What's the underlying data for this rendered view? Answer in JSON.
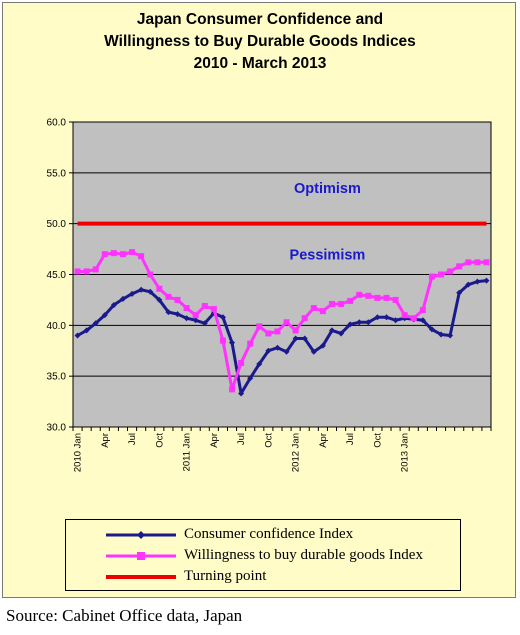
{
  "chart_data": {
    "type": "line",
    "title": [
      "Japan Consumer Confidence and",
      "Willingness to Buy Durable Goods Indices",
      "2010 -  March 2013"
    ],
    "ylim": [
      30,
      60
    ],
    "yticks": [
      "30.0",
      "35.0",
      "40.0",
      "45.0",
      "50.0",
      "55.0",
      "60.0"
    ],
    "ytick_values": [
      30,
      35,
      40,
      45,
      50,
      55,
      60
    ],
    "xtick_labels": [
      {
        "index": 0,
        "label": "2010 Jan"
      },
      {
        "index": 3,
        "label": "Apr"
      },
      {
        "index": 6,
        "label": "Jul"
      },
      {
        "index": 9,
        "label": "Oct"
      },
      {
        "index": 12,
        "label": "2011 Jan"
      },
      {
        "index": 15,
        "label": "Apr"
      },
      {
        "index": 18,
        "label": "Jul"
      },
      {
        "index": 21,
        "label": "Oct"
      },
      {
        "index": 24,
        "label": "2012 Jan"
      },
      {
        "index": 27,
        "label": "Apr"
      },
      {
        "index": 30,
        "label": "Jul"
      },
      {
        "index": 33,
        "label": "Oct"
      },
      {
        "index": 36,
        "label": "2013 Jan"
      }
    ],
    "grid": "horizontal",
    "background": "#c0c0c0",
    "legend_position": "bottom",
    "annotations": [
      {
        "text": "Optimism",
        "x": 27.5,
        "y": 53
      },
      {
        "text": "Pessimism",
        "x": 27.5,
        "y": 46.5
      }
    ],
    "series": [
      {
        "name": "Consumer confidence Index",
        "color": "#1a1a8c",
        "values": [
          39.0,
          39.5,
          40.2,
          41.0,
          42.0,
          42.6,
          43.1,
          43.5,
          43.3,
          42.5,
          41.3,
          41.1,
          40.7,
          40.5,
          40.2,
          41.2,
          40.8,
          38.3,
          33.3,
          34.8,
          36.2,
          37.5,
          37.8,
          37.4,
          38.7,
          38.7,
          37.4,
          38.0,
          39.5,
          39.2,
          40.1,
          40.3,
          40.3,
          40.8,
          40.8,
          40.5,
          40.7,
          40.6,
          40.5,
          39.6,
          39.1,
          39.0,
          43.2,
          44.0,
          44.3,
          44.4
        ]
      },
      {
        "name": "Willingness to buy durable goods Index",
        "color": "#ff33ff",
        "values": [
          45.3,
          45.3,
          45.5,
          47.0,
          47.1,
          47.0,
          47.2,
          46.8,
          45.0,
          43.6,
          42.8,
          42.5,
          41.7,
          41.0,
          41.9,
          41.6,
          38.5,
          33.7,
          36.3,
          38.2,
          39.9,
          39.2,
          39.4,
          40.3,
          39.5,
          40.7,
          41.7,
          41.4,
          42.1,
          42.1,
          42.4,
          43.0,
          42.9,
          42.7,
          42.7,
          42.5,
          41.0,
          40.7,
          41.5,
          44.8,
          45.0,
          45.3,
          45.8,
          46.2,
          46.2,
          46.2
        ]
      },
      {
        "name": "Turning point",
        "color": "#ee0000",
        "values": [
          50,
          50
        ]
      }
    ]
  },
  "legend": {
    "items": [
      {
        "label": "Consumer confidence Index",
        "color": "#1a1a8c"
      },
      {
        "label": "Willingness to buy durable goods Index",
        "color": "#ff33ff"
      },
      {
        "label": "Turning point",
        "color": "#ee0000"
      }
    ]
  },
  "source": "Source: Cabinet Office data, Japan"
}
